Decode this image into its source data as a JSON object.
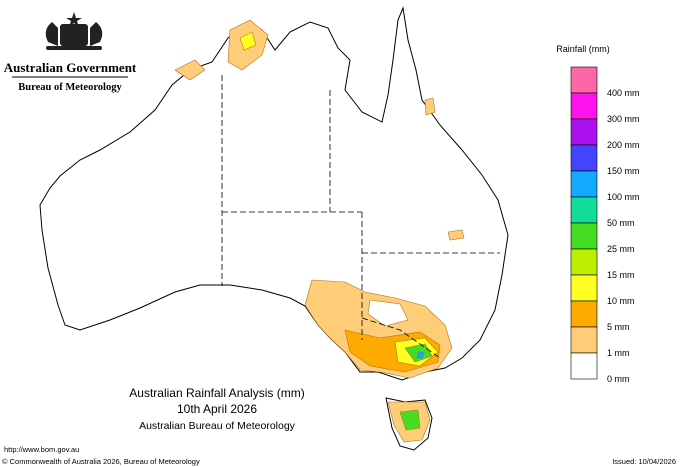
{
  "header": {
    "government": "Australian Government",
    "agency": "Bureau of Meteorology"
  },
  "legend": {
    "title": "Rainfall (mm)",
    "colors": [
      "#ff66aa",
      "#ff11ee",
      "#aa11ee",
      "#4444ff",
      "#11aaff",
      "#11dd99",
      "#44dd22",
      "#bbee00",
      "#ffff22",
      "#ffaa00",
      "#ffcc77",
      "#ffffff"
    ],
    "labels": [
      "400 mm",
      "300 mm",
      "200 mm",
      "150 mm",
      "100 mm",
      "50 mm",
      "25 mm",
      "15 mm",
      "10 mm",
      "5 mm",
      "1 mm",
      "0 mm"
    ]
  },
  "title": {
    "main": "Australian Rainfall Analysis (mm)",
    "date": "10th April 2026",
    "source": "Australian Bureau of Meteorology"
  },
  "footer": {
    "url": "http://www.bom.gov.au",
    "copyright": "© Commonwealth of Australia 2026, Bureau of Meteorology",
    "issued": "Issued: 10/04/2026"
  }
}
